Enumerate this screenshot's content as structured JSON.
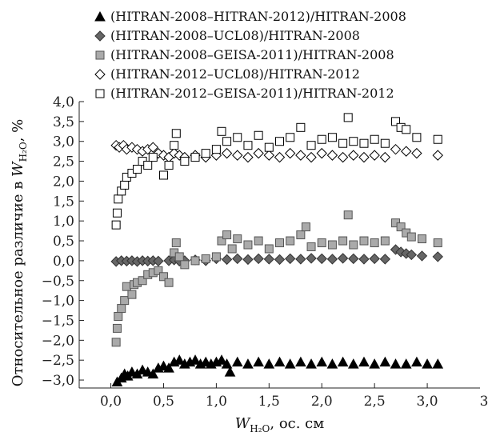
{
  "chart_data": {
    "type": "scatter",
    "xlabel": "W_{H2O}, ос. см",
    "xlabel_parts": {
      "base": "W",
      "sub": "H₂O",
      "rest": ", ос. см"
    },
    "ylabel": "Относительное различие в W_{H2O}, %",
    "ylabel_parts": {
      "prefix": "Относительное различие в ",
      "base": "W",
      "sub": "H₂O",
      "rest": ", %"
    },
    "xlim": [
      -0.3,
      3.5
    ],
    "ylim": [
      -3.2,
      4.0
    ],
    "x_ticks": [
      0.0,
      0.5,
      1.0,
      1.5,
      2.0,
      2.5,
      3.0
    ],
    "x_tick_labels": [
      "0,0",
      "0,5",
      "1,0",
      "1,5",
      "2,0",
      "2,5",
      "3,0"
    ],
    "x_edge_label": "3",
    "y_ticks": [
      -3.0,
      -2.5,
      -2.0,
      -1.5,
      -1.0,
      -0.5,
      0.0,
      0.5,
      1.0,
      1.5,
      2.0,
      2.5,
      3.0,
      3.5,
      4.0
    ],
    "y_tick_labels": [
      "−3,0",
      "−2,5",
      "−2,0",
      "−1,5",
      "−1,0",
      "−0,5",
      "0,0",
      "0,5",
      "1,0",
      "1,5",
      "2,0",
      "2,5",
      "3,0",
      "3,5",
      "4,0"
    ],
    "grid": false,
    "legend_position": "top",
    "series": [
      {
        "name": "(HITRAN-2008–HITRAN-2012)/HITRAN-2008",
        "marker": "triangle",
        "fill": "#000000",
        "stroke": "#000000",
        "points": [
          [
            0.06,
            -3.05
          ],
          [
            0.1,
            -2.95
          ],
          [
            0.13,
            -2.85
          ],
          [
            0.16,
            -2.9
          ],
          [
            0.2,
            -2.8
          ],
          [
            0.25,
            -2.85
          ],
          [
            0.3,
            -2.75
          ],
          [
            0.35,
            -2.8
          ],
          [
            0.4,
            -2.85
          ],
          [
            0.45,
            -2.7
          ],
          [
            0.5,
            -2.65
          ],
          [
            0.55,
            -2.7
          ],
          [
            0.6,
            -2.55
          ],
          [
            0.65,
            -2.5
          ],
          [
            0.7,
            -2.6
          ],
          [
            0.75,
            -2.55
          ],
          [
            0.8,
            -2.5
          ],
          [
            0.85,
            -2.6
          ],
          [
            0.9,
            -2.55
          ],
          [
            0.95,
            -2.6
          ],
          [
            1.0,
            -2.55
          ],
          [
            1.05,
            -2.5
          ],
          [
            1.1,
            -2.6
          ],
          [
            1.13,
            -2.8
          ],
          [
            1.2,
            -2.55
          ],
          [
            1.3,
            -2.6
          ],
          [
            1.4,
            -2.55
          ],
          [
            1.5,
            -2.6
          ],
          [
            1.6,
            -2.55
          ],
          [
            1.7,
            -2.6
          ],
          [
            1.8,
            -2.55
          ],
          [
            1.9,
            -2.6
          ],
          [
            2.0,
            -2.55
          ],
          [
            2.1,
            -2.6
          ],
          [
            2.2,
            -2.55
          ],
          [
            2.3,
            -2.6
          ],
          [
            2.4,
            -2.55
          ],
          [
            2.5,
            -2.6
          ],
          [
            2.6,
            -2.55
          ],
          [
            2.7,
            -2.6
          ],
          [
            2.8,
            -2.6
          ],
          [
            2.9,
            -2.55
          ],
          [
            3.0,
            -2.6
          ],
          [
            3.1,
            -2.6
          ]
        ]
      },
      {
        "name": "(HITRAN-2008–UCL08)/HITRAN-2008",
        "marker": "diamond",
        "fill": "#666666",
        "stroke": "#333333",
        "points": [
          [
            0.05,
            -0.02
          ],
          [
            0.1,
            0.0
          ],
          [
            0.15,
            -0.01
          ],
          [
            0.2,
            0.0
          ],
          [
            0.25,
            -0.02
          ],
          [
            0.3,
            0.0
          ],
          [
            0.35,
            -0.01
          ],
          [
            0.4,
            0.0
          ],
          [
            0.45,
            -0.01
          ],
          [
            0.55,
            0.0
          ],
          [
            0.6,
            0.02
          ],
          [
            0.65,
            -0.01
          ],
          [
            0.7,
            0.0
          ],
          [
            0.8,
            0.02
          ],
          [
            0.9,
            0.0
          ],
          [
            1.0,
            0.05
          ],
          [
            1.1,
            0.03
          ],
          [
            1.2,
            0.05
          ],
          [
            1.3,
            0.03
          ],
          [
            1.4,
            0.05
          ],
          [
            1.5,
            0.04
          ],
          [
            1.6,
            0.03
          ],
          [
            1.7,
            0.05
          ],
          [
            1.8,
            0.04
          ],
          [
            1.9,
            0.06
          ],
          [
            2.0,
            0.05
          ],
          [
            2.1,
            0.04
          ],
          [
            2.2,
            0.06
          ],
          [
            2.3,
            0.05
          ],
          [
            2.4,
            0.04
          ],
          [
            2.5,
            0.05
          ],
          [
            2.6,
            0.04
          ],
          [
            2.7,
            0.28
          ],
          [
            2.75,
            0.22
          ],
          [
            2.8,
            0.18
          ],
          [
            2.85,
            0.15
          ],
          [
            2.95,
            0.12
          ],
          [
            3.1,
            0.1
          ]
        ]
      },
      {
        "name": "(HITRAN-2008–GEISA-2011)/HITRAN-2008",
        "marker": "square",
        "fill": "#aaaaaa",
        "stroke": "#555555",
        "points": [
          [
            0.05,
            -2.05
          ],
          [
            0.06,
            -1.7
          ],
          [
            0.07,
            -1.4
          ],
          [
            0.1,
            -1.2
          ],
          [
            0.13,
            -1.0
          ],
          [
            0.15,
            -0.65
          ],
          [
            0.2,
            -0.85
          ],
          [
            0.22,
            -0.6
          ],
          [
            0.25,
            -0.55
          ],
          [
            0.3,
            -0.5
          ],
          [
            0.35,
            -0.35
          ],
          [
            0.4,
            -0.3
          ],
          [
            0.45,
            -0.25
          ],
          [
            0.5,
            -0.4
          ],
          [
            0.55,
            -0.55
          ],
          [
            0.6,
            0.2
          ],
          [
            0.62,
            0.45
          ],
          [
            0.65,
            0.1
          ],
          [
            0.7,
            -0.1
          ],
          [
            0.8,
            0.0
          ],
          [
            0.9,
            0.05
          ],
          [
            1.0,
            0.1
          ],
          [
            1.05,
            0.5
          ],
          [
            1.1,
            0.65
          ],
          [
            1.15,
            0.3
          ],
          [
            1.2,
            0.55
          ],
          [
            1.3,
            0.4
          ],
          [
            1.4,
            0.5
          ],
          [
            1.5,
            0.3
          ],
          [
            1.6,
            0.45
          ],
          [
            1.7,
            0.5
          ],
          [
            1.8,
            0.65
          ],
          [
            1.85,
            0.85
          ],
          [
            1.9,
            0.35
          ],
          [
            2.0,
            0.45
          ],
          [
            2.1,
            0.4
          ],
          [
            2.2,
            0.5
          ],
          [
            2.25,
            1.15
          ],
          [
            2.3,
            0.4
          ],
          [
            2.4,
            0.5
          ],
          [
            2.5,
            0.45
          ],
          [
            2.6,
            0.5
          ],
          [
            2.7,
            0.95
          ],
          [
            2.75,
            0.85
          ],
          [
            2.8,
            0.7
          ],
          [
            2.85,
            0.6
          ],
          [
            2.95,
            0.55
          ],
          [
            3.1,
            0.45
          ]
        ]
      },
      {
        "name": "(HITRAN-2012–UCL08)/HITRAN-2012",
        "marker": "diamond",
        "fill": "#ffffff",
        "stroke": "#000000",
        "points": [
          [
            0.05,
            2.9
          ],
          [
            0.08,
            2.85
          ],
          [
            0.12,
            2.9
          ],
          [
            0.15,
            2.8
          ],
          [
            0.2,
            2.85
          ],
          [
            0.25,
            2.8
          ],
          [
            0.3,
            2.75
          ],
          [
            0.35,
            2.8
          ],
          [
            0.4,
            2.85
          ],
          [
            0.45,
            2.7
          ],
          [
            0.5,
            2.65
          ],
          [
            0.55,
            2.6
          ],
          [
            0.6,
            2.7
          ],
          [
            0.65,
            2.65
          ],
          [
            0.7,
            2.6
          ],
          [
            0.8,
            2.65
          ],
          [
            0.9,
            2.6
          ],
          [
            1.0,
            2.65
          ],
          [
            1.1,
            2.7
          ],
          [
            1.2,
            2.65
          ],
          [
            1.3,
            2.6
          ],
          [
            1.4,
            2.7
          ],
          [
            1.5,
            2.65
          ],
          [
            1.6,
            2.6
          ],
          [
            1.7,
            2.7
          ],
          [
            1.8,
            2.65
          ],
          [
            1.9,
            2.6
          ],
          [
            2.0,
            2.7
          ],
          [
            2.1,
            2.65
          ],
          [
            2.2,
            2.6
          ],
          [
            2.3,
            2.65
          ],
          [
            2.4,
            2.6
          ],
          [
            2.5,
            2.65
          ],
          [
            2.6,
            2.6
          ],
          [
            2.7,
            2.8
          ],
          [
            2.8,
            2.75
          ],
          [
            2.9,
            2.7
          ],
          [
            3.1,
            2.65
          ]
        ]
      },
      {
        "name": "(HITRAN-2012–GEISA-2011)/HITRAN-2012",
        "marker": "square",
        "fill": "#ffffff",
        "stroke": "#000000",
        "points": [
          [
            0.05,
            0.9
          ],
          [
            0.06,
            1.2
          ],
          [
            0.07,
            1.55
          ],
          [
            0.1,
            1.75
          ],
          [
            0.13,
            1.9
          ],
          [
            0.15,
            2.1
          ],
          [
            0.2,
            2.2
          ],
          [
            0.25,
            2.3
          ],
          [
            0.3,
            2.5
          ],
          [
            0.35,
            2.4
          ],
          [
            0.4,
            2.6
          ],
          [
            0.5,
            2.15
          ],
          [
            0.55,
            2.4
          ],
          [
            0.6,
            2.9
          ],
          [
            0.62,
            3.2
          ],
          [
            0.7,
            2.5
          ],
          [
            0.8,
            2.6
          ],
          [
            0.9,
            2.7
          ],
          [
            1.0,
            2.8
          ],
          [
            1.05,
            3.25
          ],
          [
            1.1,
            3.0
          ],
          [
            1.2,
            3.1
          ],
          [
            1.3,
            2.9
          ],
          [
            1.4,
            3.15
          ],
          [
            1.5,
            2.85
          ],
          [
            1.6,
            3.0
          ],
          [
            1.7,
            3.1
          ],
          [
            1.8,
            3.35
          ],
          [
            1.9,
            2.9
          ],
          [
            2.0,
            3.05
          ],
          [
            2.1,
            3.1
          ],
          [
            2.2,
            2.95
          ],
          [
            2.25,
            3.6
          ],
          [
            2.3,
            3.0
          ],
          [
            2.4,
            2.95
          ],
          [
            2.5,
            3.05
          ],
          [
            2.6,
            2.95
          ],
          [
            2.7,
            3.5
          ],
          [
            2.75,
            3.35
          ],
          [
            2.8,
            3.3
          ],
          [
            2.9,
            3.1
          ],
          [
            3.1,
            3.05
          ]
        ]
      }
    ]
  }
}
